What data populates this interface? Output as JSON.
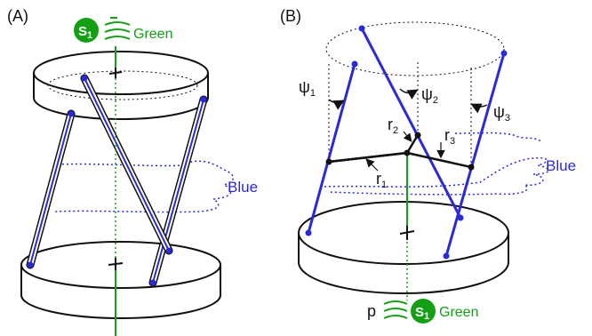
{
  "panel_a": {
    "label": "(A)",
    "symbol": "S",
    "symbol_sub": "1",
    "color_label": "Green",
    "curve_label": "Blue"
  },
  "panel_b": {
    "label": "(B)",
    "psi": "ψ",
    "psi1_sub": "1",
    "psi2_sub": "2",
    "psi3_sub": "3",
    "r": "r",
    "r1_sub": "1",
    "r2_sub": "2",
    "r3_sub": "3",
    "curve_label": "Blue",
    "point_label": "p",
    "symbol": "S",
    "symbol_sub": "1",
    "color_label": "Green"
  },
  "colors": {
    "green": "#14a014",
    "blue": "#2a2ad8",
    "ink": "#111111"
  }
}
